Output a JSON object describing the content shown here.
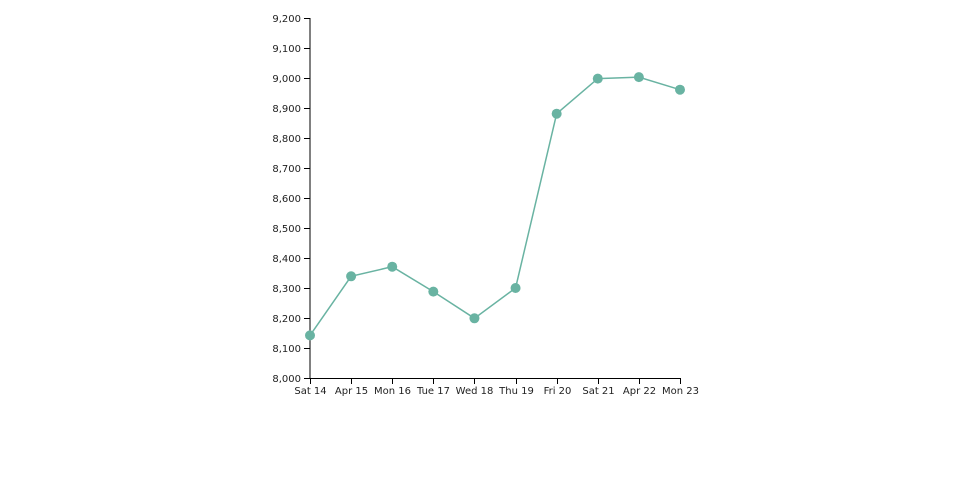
{
  "colors": {
    "series": "#69b3a2",
    "axis": "#000000",
    "text": "#222222"
  },
  "chart_data": {
    "type": "line",
    "title": "",
    "xlabel": "",
    "ylabel": "",
    "grid": false,
    "markers": true,
    "x": [
      "Sat 14",
      "Apr 15",
      "Mon 16",
      "Tue 17",
      "Wed 18",
      "Thu 19",
      "Fri 20",
      "Sat 21",
      "Apr 22",
      "Mon 23"
    ],
    "x_tick_labels": [
      "Sat 14",
      "Apr 15",
      "Mon 16",
      "Tue 17",
      "Wed 18",
      "Thu 19",
      "Fri 20",
      "Sat 21",
      "Apr 22",
      "Mon 23"
    ],
    "series": [
      {
        "values": [
          8142,
          8339,
          8371,
          8288,
          8199,
          8300,
          8881,
          8998,
          9003,
          8961
        ]
      }
    ],
    "ylim": [
      8000,
      9200
    ],
    "y_ticks": [
      8000,
      8100,
      8200,
      8300,
      8400,
      8500,
      8600,
      8700,
      8800,
      8900,
      9000,
      9100,
      9200
    ],
    "y_tick_labels": [
      "8,000",
      "8,100",
      "8,200",
      "8,300",
      "8,400",
      "8,500",
      "8,600",
      "8,700",
      "8,800",
      "8,900",
      "9,000",
      "9,100",
      "9,200"
    ]
  }
}
